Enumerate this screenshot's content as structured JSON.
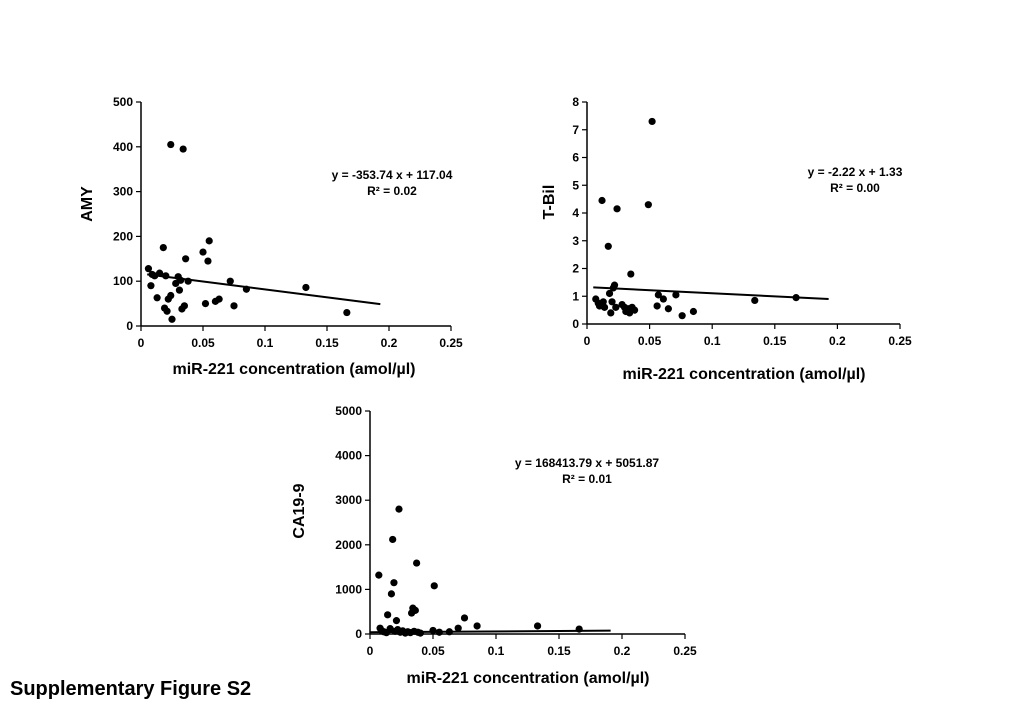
{
  "caption": "Supplementary Figure S2",
  "chart_data": [
    {
      "type": "scatter",
      "xlabel": "miR-221 concentration (amol/µl)",
      "ylabel": "AMY",
      "xlim": [
        0,
        0.25
      ],
      "ylim": [
        0,
        500
      ],
      "xticks": [
        0,
        0.05,
        0.1,
        0.15,
        0.2,
        0.25
      ],
      "xtick_labels": [
        "0",
        "0.05",
        "0.1",
        "0.15",
        "0.2",
        "0.25"
      ],
      "yticks": [
        0,
        100,
        200,
        300,
        400,
        500
      ],
      "ytick_labels": [
        "0",
        "100",
        "200",
        "300",
        "400",
        "500"
      ],
      "grid": false,
      "trendline": {
        "slope": -353.74,
        "intercept": 117.04,
        "x_start": 0.005,
        "x_end": 0.193
      },
      "annotation": [
        "y = -353.74 x + 117.04",
        "R² = 0.02"
      ],
      "points": [
        [
          0.006,
          128
        ],
        [
          0.008,
          90
        ],
        [
          0.009,
          115
        ],
        [
          0.011,
          112
        ],
        [
          0.013,
          63
        ],
        [
          0.015,
          118
        ],
        [
          0.018,
          175
        ],
        [
          0.019,
          40
        ],
        [
          0.02,
          112
        ],
        [
          0.021,
          33
        ],
        [
          0.022,
          60
        ],
        [
          0.024,
          68
        ],
        [
          0.024,
          405
        ],
        [
          0.025,
          15
        ],
        [
          0.028,
          95
        ],
        [
          0.03,
          110
        ],
        [
          0.031,
          80
        ],
        [
          0.032,
          102
        ],
        [
          0.033,
          38
        ],
        [
          0.034,
          395
        ],
        [
          0.035,
          45
        ],
        [
          0.036,
          150
        ],
        [
          0.038,
          100
        ],
        [
          0.05,
          165
        ],
        [
          0.052,
          50
        ],
        [
          0.054,
          145
        ],
        [
          0.055,
          190
        ],
        [
          0.06,
          55
        ],
        [
          0.063,
          60
        ],
        [
          0.072,
          100
        ],
        [
          0.075,
          45
        ],
        [
          0.085,
          82
        ],
        [
          0.133,
          86
        ],
        [
          0.166,
          30
        ]
      ]
    },
    {
      "type": "scatter",
      "xlabel": "miR-221 concentration (amol/µl)",
      "ylabel": "T-Bil",
      "xlim": [
        0,
        0.25
      ],
      "ylim": [
        0,
        8
      ],
      "xticks": [
        0,
        0.05,
        0.1,
        0.15,
        0.2,
        0.25
      ],
      "xtick_labels": [
        "0",
        "0.05",
        "0.1",
        "0.15",
        "0.2",
        "0.25"
      ],
      "yticks": [
        0,
        1,
        2,
        3,
        4,
        5,
        6,
        7,
        8
      ],
      "ytick_labels": [
        "0",
        "1",
        "2",
        "3",
        "4",
        "5",
        "6",
        "7",
        "8"
      ],
      "grid": false,
      "trendline": {
        "slope": -2.22,
        "intercept": 1.33,
        "x_start": 0.005,
        "x_end": 0.193
      },
      "annotation": [
        "y = -2.22 x + 1.33",
        "R² = 0.00"
      ],
      "points": [
        [
          0.007,
          0.9
        ],
        [
          0.009,
          0.75
        ],
        [
          0.01,
          0.65
        ],
        [
          0.012,
          4.45
        ],
        [
          0.013,
          0.8
        ],
        [
          0.014,
          0.6
        ],
        [
          0.017,
          2.8
        ],
        [
          0.018,
          1.1
        ],
        [
          0.019,
          0.4
        ],
        [
          0.02,
          0.8
        ],
        [
          0.021,
          1.3
        ],
        [
          0.022,
          1.4
        ],
        [
          0.023,
          0.6
        ],
        [
          0.024,
          4.15
        ],
        [
          0.028,
          0.7
        ],
        [
          0.03,
          0.6
        ],
        [
          0.031,
          0.45
        ],
        [
          0.033,
          0.55
        ],
        [
          0.034,
          0.4
        ],
        [
          0.035,
          1.8
        ],
        [
          0.036,
          0.6
        ],
        [
          0.038,
          0.5
        ],
        [
          0.049,
          4.3
        ],
        [
          0.052,
          7.3
        ],
        [
          0.056,
          0.65
        ],
        [
          0.057,
          1.05
        ],
        [
          0.061,
          0.9
        ],
        [
          0.065,
          0.55
        ],
        [
          0.071,
          1.05
        ],
        [
          0.076,
          0.3
        ],
        [
          0.085,
          0.45
        ],
        [
          0.134,
          0.85
        ],
        [
          0.167,
          0.95
        ]
      ]
    },
    {
      "type": "scatter",
      "xlabel": "miR-221 concentration (amol/µl)",
      "ylabel": "CA19-9",
      "xlim": [
        0,
        0.25
      ],
      "ylim": [
        0,
        5000
      ],
      "xticks": [
        0,
        0.05,
        0.1,
        0.15,
        0.2,
        0.25
      ],
      "xtick_labels": [
        "0",
        "0.05",
        "0.1",
        "0.15",
        "0.2",
        "0.25"
      ],
      "yticks": [
        0,
        1000,
        2000,
        3000,
        4000,
        5000
      ],
      "ytick_labels": [
        "0",
        "1000",
        "2000",
        "3000",
        "4000",
        "5000"
      ],
      "grid": false,
      "trendline": {
        "slope": 168413.79,
        "intercept": 5051.87,
        "x_start": 0.0,
        "x_end": 0.191,
        "display_y": [
          40,
          75
        ]
      },
      "annotation": [
        "y = 168413.79 x + 5051.87",
        "R² = 0.01"
      ],
      "points": [
        [
          0.007,
          1320
        ],
        [
          0.008,
          130
        ],
        [
          0.009,
          80
        ],
        [
          0.011,
          50
        ],
        [
          0.013,
          30
        ],
        [
          0.014,
          430
        ],
        [
          0.016,
          120
        ],
        [
          0.017,
          900
        ],
        [
          0.018,
          2120
        ],
        [
          0.019,
          1150
        ],
        [
          0.02,
          60
        ],
        [
          0.021,
          300
        ],
        [
          0.022,
          100
        ],
        [
          0.023,
          2800
        ],
        [
          0.024,
          40
        ],
        [
          0.026,
          70
        ],
        [
          0.028,
          20
        ],
        [
          0.03,
          50
        ],
        [
          0.032,
          30
        ],
        [
          0.033,
          470
        ],
        [
          0.034,
          580
        ],
        [
          0.035,
          60
        ],
        [
          0.036,
          530
        ],
        [
          0.037,
          1590
        ],
        [
          0.038,
          40
        ],
        [
          0.04,
          20
        ],
        [
          0.05,
          80
        ],
        [
          0.051,
          1080
        ],
        [
          0.055,
          40
        ],
        [
          0.063,
          50
        ],
        [
          0.07,
          130
        ],
        [
          0.075,
          360
        ],
        [
          0.085,
          180
        ],
        [
          0.133,
          180
        ],
        [
          0.166,
          110
        ]
      ]
    }
  ]
}
